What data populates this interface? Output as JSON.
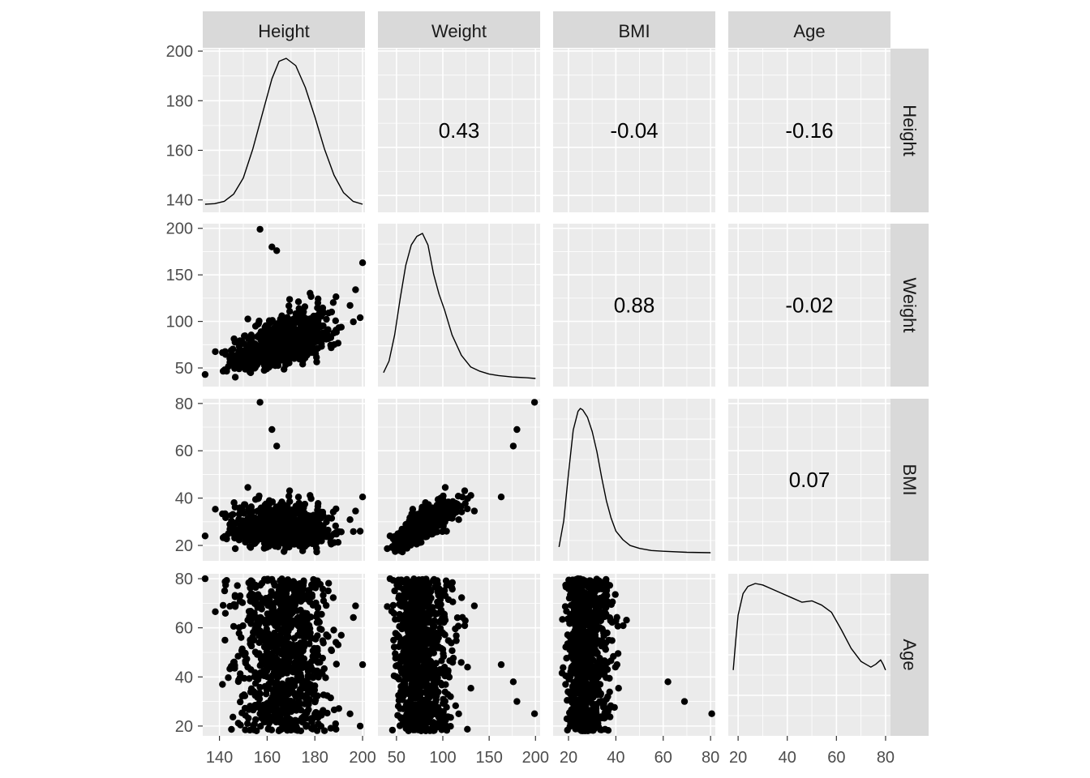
{
  "chart_data": {
    "type": "scatter",
    "variables": [
      "Height",
      "Weight",
      "BMI",
      "Age"
    ],
    "axes": {
      "Height": {
        "range": [
          133,
          201
        ],
        "ticks": [
          "140",
          "160",
          "180",
          "200"
        ],
        "tick_values": [
          140,
          160,
          180,
          200
        ]
      },
      "Weight": {
        "range": [
          30,
          205
        ],
        "ticks": [
          "50",
          "100",
          "150",
          "200"
        ],
        "tick_values": [
          50,
          100,
          150,
          200
        ]
      },
      "BMI": {
        "range": [
          13.5,
          82
        ],
        "ticks": [
          "20",
          "40",
          "60",
          "80"
        ],
        "tick_values": [
          20,
          40,
          60,
          80
        ]
      },
      "Age": {
        "range": [
          16,
          82
        ],
        "ticks": [
          "20",
          "40",
          "60",
          "80"
        ],
        "tick_values": [
          20,
          40,
          60,
          80
        ]
      }
    },
    "correlations": [
      {
        "row": "Height",
        "col": "Weight",
        "value": "0.43"
      },
      {
        "row": "Height",
        "col": "BMI",
        "value": "-0.04"
      },
      {
        "row": "Height",
        "col": "Age",
        "value": "-0.16"
      },
      {
        "row": "Weight",
        "col": "BMI",
        "value": "0.88"
      },
      {
        "row": "Weight",
        "col": "Age",
        "value": "-0.02"
      },
      {
        "row": "BMI",
        "col": "Age",
        "value": "0.07"
      }
    ],
    "densities": {
      "Height": {
        "x": [
          134,
          138,
          142,
          146,
          150,
          154,
          158,
          162,
          165,
          168,
          172,
          176,
          180,
          184,
          188,
          192,
          196,
          200
        ],
        "density": [
          0.0,
          0.004,
          0.02,
          0.07,
          0.18,
          0.38,
          0.62,
          0.86,
          0.98,
          1.0,
          0.95,
          0.8,
          0.6,
          0.38,
          0.2,
          0.08,
          0.02,
          0.0
        ]
      },
      "Weight": {
        "x": [
          36,
          42,
          48,
          54,
          60,
          66,
          72,
          78,
          84,
          90,
          96,
          102,
          110,
          120,
          130,
          140,
          150,
          160,
          175,
          190,
          200
        ],
        "density": [
          0.04,
          0.12,
          0.3,
          0.55,
          0.78,
          0.92,
          0.98,
          1.0,
          0.92,
          0.72,
          0.58,
          0.47,
          0.3,
          0.16,
          0.08,
          0.05,
          0.03,
          0.02,
          0.01,
          0.005,
          0.0
        ]
      },
      "BMI": {
        "x": [
          16,
          18,
          20,
          22,
          24,
          25,
          26,
          28,
          30,
          32,
          34,
          36,
          38,
          40,
          43,
          46,
          50,
          55,
          60,
          70,
          80
        ],
        "density": [
          0.04,
          0.22,
          0.55,
          0.85,
          0.98,
          1.0,
          0.99,
          0.94,
          0.84,
          0.7,
          0.52,
          0.36,
          0.24,
          0.15,
          0.09,
          0.05,
          0.03,
          0.015,
          0.01,
          0.003,
          0.0
        ]
      },
      "Age": {
        "x": [
          18,
          19,
          20,
          22,
          24,
          27,
          30,
          34,
          38,
          42,
          46,
          50,
          54,
          58,
          62,
          66,
          70,
          72,
          74,
          76,
          78,
          79,
          80
        ],
        "density": [
          0.4,
          0.6,
          0.78,
          0.93,
          0.98,
          1.0,
          0.99,
          0.96,
          0.93,
          0.9,
          0.87,
          0.88,
          0.85,
          0.8,
          0.68,
          0.55,
          0.46,
          0.44,
          0.42,
          0.44,
          0.47,
          0.44,
          0.4
        ]
      }
    },
    "scatter_description": "Each lower panel shows every observation as a point for the pair of variables (x = column variable, y = row variable)."
  }
}
